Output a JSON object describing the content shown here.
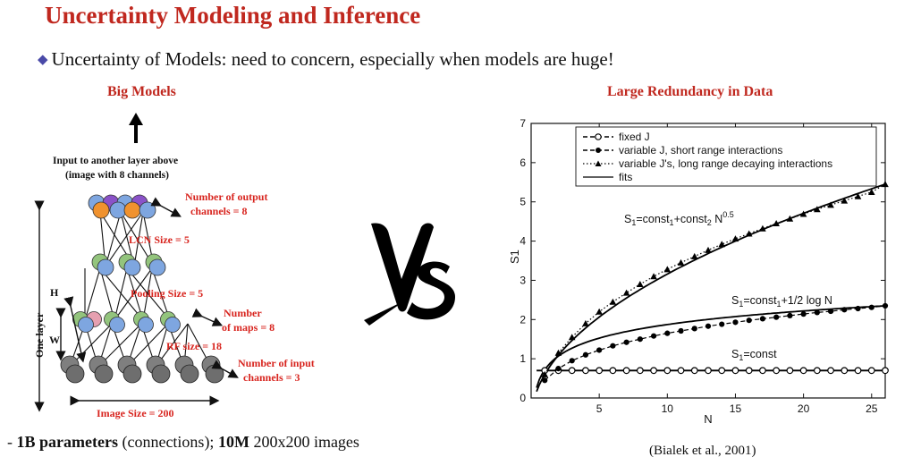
{
  "slide": {
    "title": "Uncertainty Modeling and Inference",
    "bullet": "Uncertainty of Models: need to concern, especially when models are huge!",
    "bottom_note": {
      "prefix": "- ",
      "bold1": "1B parameters",
      "text1": " (connections); ",
      "bold2": "10M",
      "text2": " 200x200 images"
    },
    "citation": "(Bialek et al., 2001)"
  },
  "left_diagram": {
    "heading": "Big Models",
    "input_label_1": "Input to another layer above",
    "input_label_2": "(image with 8 channels)",
    "output_channels_1": "Number  of output",
    "output_channels_2": "channels = 8",
    "lcn_size": "LCN Size = 5",
    "pooling_size": "Pooling Size = 5",
    "num_maps_1": "Number",
    "num_maps_2": "of maps = 8",
    "rf_size": "RF size = 18",
    "input_channels_1": "Number  of input",
    "input_channels_2": "channels = 3",
    "image_size": "Image Size = 200",
    "one_layer": "One layer",
    "h_label": "H",
    "w_label": "W",
    "colors": {
      "red_label": "#d8251f",
      "blue": "#7ea6e0",
      "orange": "#f0922e",
      "purple": "#8a52c8",
      "green": "#93c47d",
      "pink": "#e6a0b0",
      "gray": "#7f7f7f"
    }
  },
  "vs_label": "VS",
  "chart_data": {
    "type": "line",
    "title": "Large Redundancy in Data",
    "xlabel": "N",
    "ylabel": "S1",
    "xlim": [
      0,
      26
    ],
    "ylim": [
      0,
      7
    ],
    "xticks": [
      5,
      10,
      15,
      20,
      25
    ],
    "yticks": [
      0,
      1,
      2,
      3,
      4,
      5,
      6,
      7
    ],
    "grid": false,
    "legend_position": "top-left",
    "legend": [
      "fixed  J",
      "variable  J, short range interactions",
      "variable  J's, long range decaying interactions",
      "fits"
    ],
    "annotations": [
      {
        "text": "S1=const1+const2 N0.5"
      },
      {
        "text": "S1=const1+1/2 log N"
      },
      {
        "text": "S1=const"
      }
    ],
    "annotation_parts": {
      "a1": {
        "S": "S",
        "s1": "1",
        "eq": "=const",
        "s2": "1",
        "plus": "+const",
        "s3": "2",
        "n": " N",
        "sup": "0.5"
      },
      "a2": {
        "S": "S",
        "s1": "1",
        "eq": "=const",
        "s2": "1",
        "rest": "+1/2 log N"
      },
      "a3": {
        "S": "S",
        "s1": "1",
        "eq": "=const"
      }
    },
    "series": [
      {
        "name": "fixed  J",
        "marker": "circle-open",
        "x": [
          1,
          2,
          3,
          4,
          5,
          6,
          7,
          8,
          9,
          10,
          11,
          12,
          13,
          14,
          15,
          16,
          17,
          18,
          19,
          20,
          21,
          22,
          23,
          24,
          25,
          26
        ],
        "y": [
          0.7,
          0.7,
          0.7,
          0.7,
          0.7,
          0.7,
          0.7,
          0.7,
          0.7,
          0.7,
          0.7,
          0.7,
          0.7,
          0.7,
          0.7,
          0.7,
          0.7,
          0.7,
          0.7,
          0.7,
          0.7,
          0.7,
          0.7,
          0.7,
          0.7,
          0.7
        ]
      },
      {
        "name": "variable  J, short range interactions",
        "marker": "circle-filled",
        "x": [
          1,
          2,
          3,
          4,
          5,
          6,
          7,
          8,
          9,
          10,
          11,
          12,
          13,
          14,
          15,
          16,
          17,
          18,
          19,
          20,
          21,
          22,
          23,
          24,
          25,
          26
        ],
        "y": [
          0.45,
          0.75,
          0.95,
          1.1,
          1.22,
          1.33,
          1.42,
          1.5,
          1.58,
          1.65,
          1.71,
          1.77,
          1.83,
          1.88,
          1.93,
          1.98,
          2.02,
          2.06,
          2.1,
          2.14,
          2.18,
          2.21,
          2.25,
          2.28,
          2.31,
          2.35
        ]
      },
      {
        "name": "variable  J's, long range decaying interactions",
        "marker": "triangle",
        "x": [
          1,
          2,
          3,
          4,
          5,
          6,
          7,
          8,
          9,
          10,
          11,
          12,
          13,
          14,
          15,
          16,
          17,
          18,
          19,
          20,
          21,
          22,
          23,
          24,
          25,
          26
        ],
        "y": [
          0.6,
          1.15,
          1.55,
          1.9,
          2.2,
          2.45,
          2.68,
          2.9,
          3.1,
          3.28,
          3.45,
          3.61,
          3.77,
          3.92,
          4.06,
          4.19,
          4.32,
          4.45,
          4.57,
          4.69,
          4.81,
          4.92,
          5.03,
          5.14,
          5.25,
          5.45
        ]
      }
    ]
  }
}
